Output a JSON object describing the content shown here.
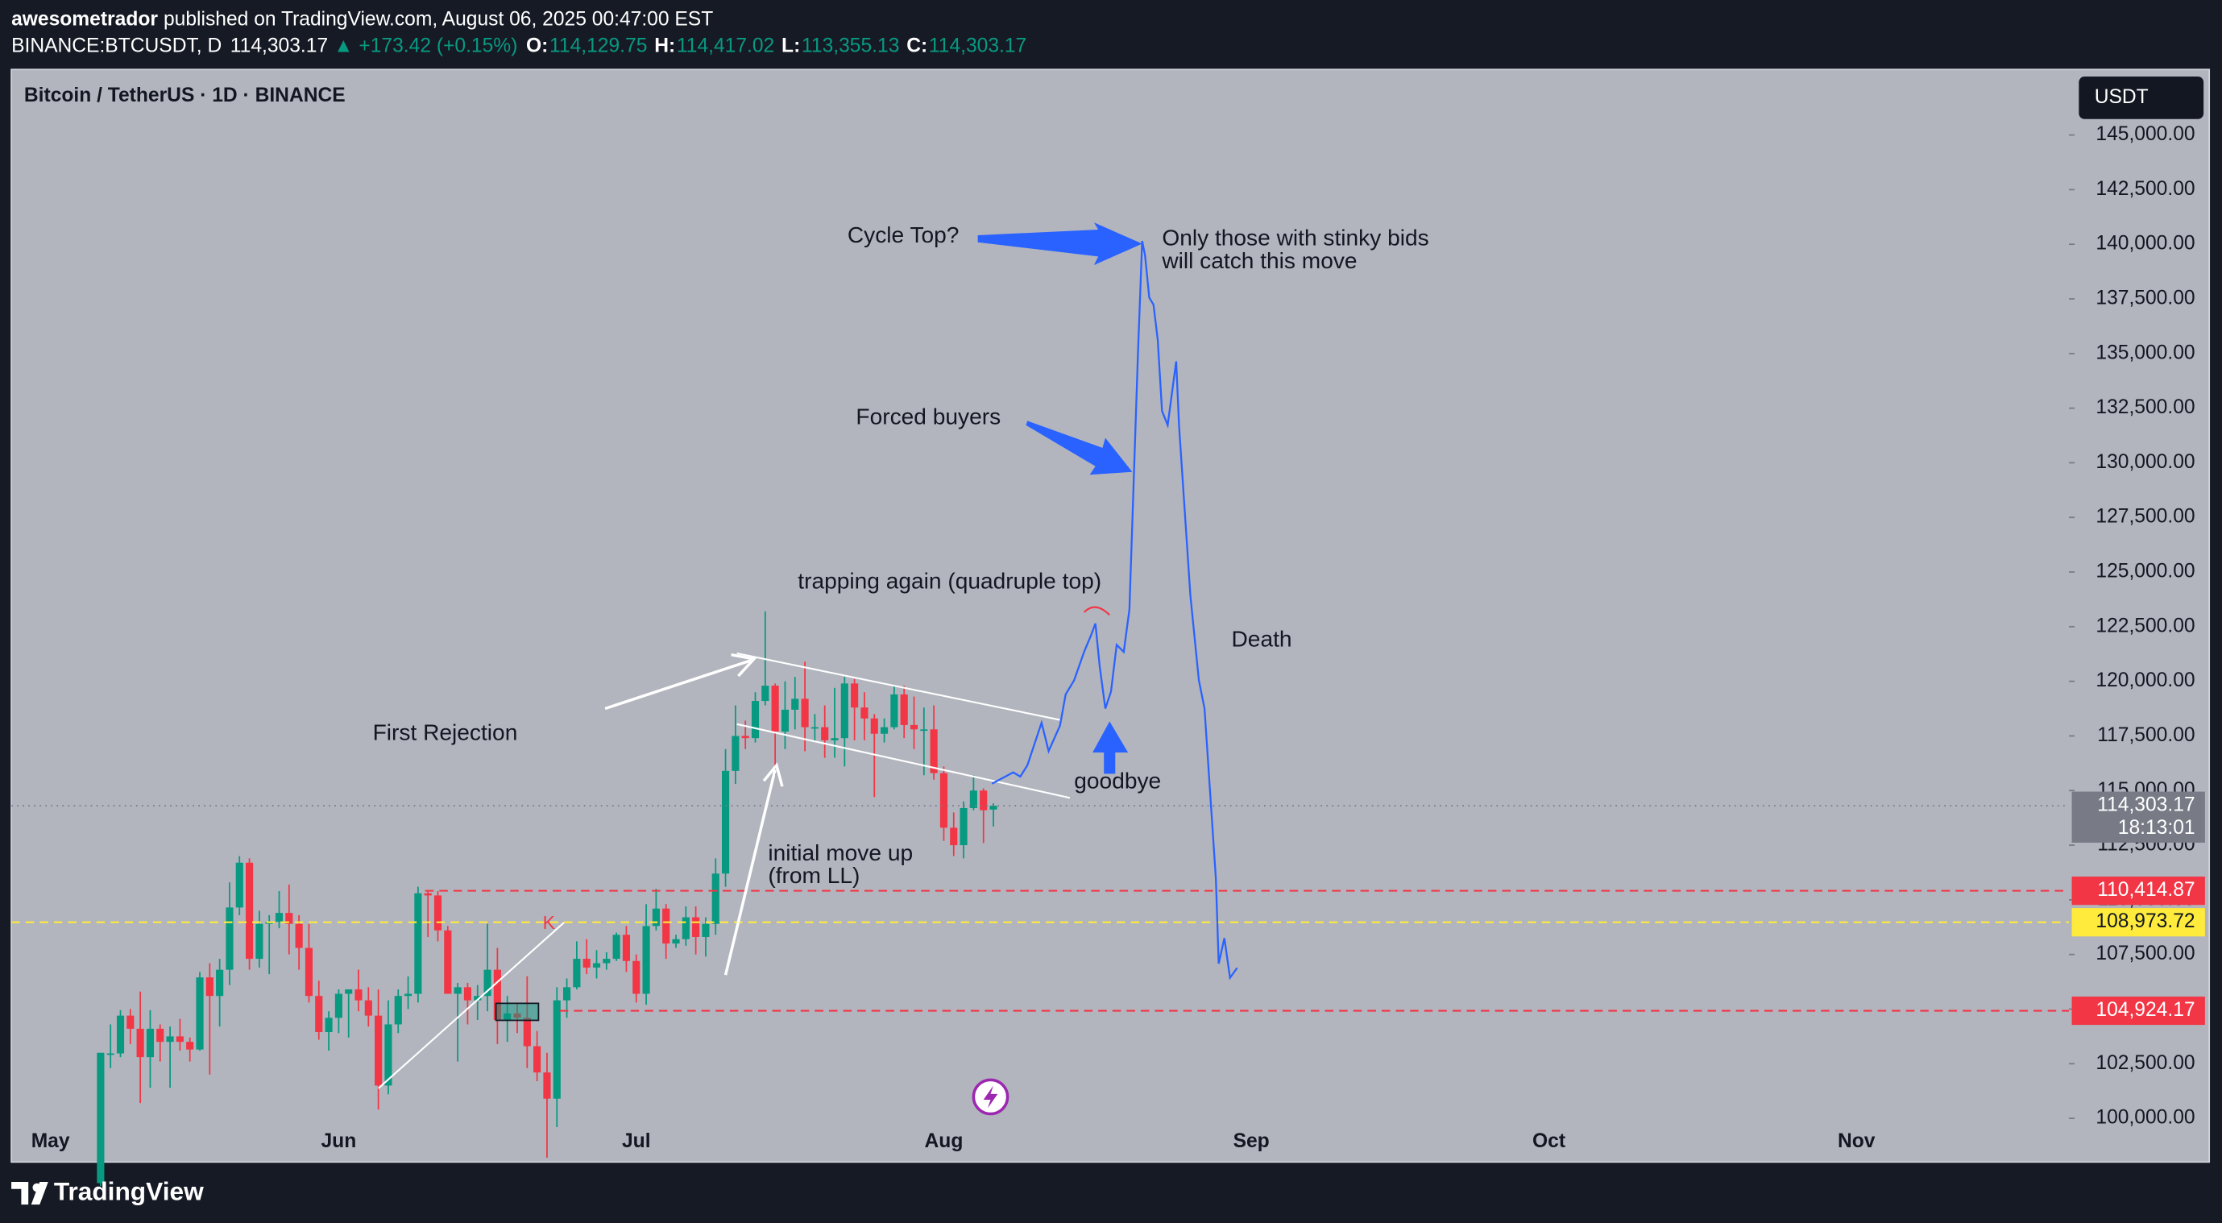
{
  "header": {
    "author": "awesometrador",
    "published": "published on TradingView.com, August 06, 2025 00:47:00 EST",
    "symbol": "BINANCE:BTCUSDT, D",
    "last": "114,303.17",
    "change": "▲ +173.42 (+0.15%)",
    "ohlc": [
      {
        "label": "O:",
        "value": "114,129.75"
      },
      {
        "label": "H:",
        "value": "114,417.02"
      },
      {
        "label": "L:",
        "value": "113,355.13"
      },
      {
        "label": "C:",
        "value": "114,303.17"
      }
    ]
  },
  "footer": {
    "brand": "TradingView"
  },
  "chart_data": {
    "type": "candlestick",
    "title": "Bitcoin / TetherUS · 1D · BINANCE",
    "currency": "USDT",
    "up_color": "#089981",
    "down_color": "#f23645",
    "x_labels": [
      "May",
      "Jun",
      "Jul",
      "Aug",
      "Sep",
      "Oct",
      "Nov"
    ],
    "open": [
      97034,
      102970,
      102970,
      104700,
      104100,
      102800,
      104100,
      103500,
      103750,
      103500,
      103150,
      106450,
      105600,
      106800,
      109650,
      111700,
      107300,
      108900,
      109000,
      109400,
      108900,
      107800,
      105600,
      103950,
      104600,
      105700,
      105900,
      105400,
      104700,
      101500,
      104300,
      105600,
      105700,
      110300,
      110200,
      108600,
      105700,
      106000,
      105400,
      105600,
      106800,
      104500,
      104800,
      104600,
      103300,
      102100,
      100900,
      105400,
      106000,
      107300,
      106900,
      107100,
      107300,
      108400,
      107200,
      105700,
      108800,
      109600,
      108000,
      108200,
      109200,
      108300,
      108900,
      111200,
      115900,
      117500,
      117400,
      119100,
      119800,
      117700,
      118700,
      119200,
      117900,
      117900,
      117300,
      117400,
      119900,
      118800,
      118300,
      117600,
      117900,
      119400,
      118000,
      117800,
      117800,
      115800,
      113300,
      112500,
      114200,
      115000,
      114129.75
    ],
    "high": [
      103000,
      104300,
      104950,
      105000,
      105800,
      104950,
      104300,
      104200,
      104550,
      103700,
      106700,
      107100,
      107300,
      110800,
      112000,
      111900,
      109500,
      109300,
      110400,
      110700,
      109300,
      108900,
      106300,
      104900,
      105900,
      105900,
      106800,
      106000,
      105900,
      105400,
      105900,
      106500,
      110600,
      110400,
      110400,
      108800,
      106200,
      106200,
      106100,
      108900,
      107800,
      105600,
      105300,
      106500,
      104000,
      103000,
      106000,
      106400,
      108100,
      108200,
      107700,
      107600,
      108500,
      108800,
      107500,
      109800,
      110500,
      109800,
      108400,
      109700,
      109700,
      109200,
      111900,
      116900,
      118900,
      118200,
      119500,
      123200,
      119900,
      120000,
      120200,
      120900,
      118500,
      118900,
      119700,
      120200,
      120100,
      119500,
      118500,
      118300,
      119800,
      119800,
      119300,
      118800,
      118900,
      116100,
      114000,
      114500,
      115700,
      115100,
      114417.02
    ],
    "low": [
      96900,
      102300,
      102800,
      103400,
      100700,
      101400,
      102600,
      101400,
      103100,
      102600,
      103100,
      102000,
      104200,
      106100,
      109300,
      106800,
      106900,
      106600,
      108700,
      107500,
      106800,
      105300,
      103600,
      103100,
      103900,
      103700,
      104900,
      104200,
      100400,
      101100,
      103900,
      105000,
      105300,
      108300,
      108100,
      105700,
      102600,
      104300,
      104500,
      104900,
      103400,
      103500,
      103900,
      102300,
      101700,
      98200,
      99600,
      104600,
      105900,
      106600,
      106400,
      106800,
      107200,
      106700,
      105300,
      105200,
      108600,
      107300,
      107800,
      107900,
      107500,
      107400,
      108400,
      110600,
      115300,
      116900,
      117200,
      118900,
      115700,
      116900,
      117800,
      116800,
      117300,
      116500,
      116500,
      116100,
      117300,
      117300,
      114700,
      117200,
      117800,
      117400,
      116900,
      115700,
      115500,
      112700,
      112000,
      111900,
      114100,
      112600,
      113355.13
    ],
    "close": [
      103000,
      102970,
      104700,
      104100,
      102800,
      104100,
      103500,
      103750,
      103500,
      103150,
      106450,
      105600,
      106800,
      109650,
      111700,
      107300,
      108900,
      109000,
      109400,
      108900,
      107800,
      105600,
      103950,
      104600,
      105700,
      105900,
      105400,
      104700,
      101500,
      104300,
      105600,
      105700,
      110300,
      110200,
      108600,
      105700,
      106000,
      105400,
      105600,
      106800,
      104500,
      104800,
      104600,
      103300,
      102100,
      100900,
      105400,
      106000,
      107300,
      106900,
      107100,
      107300,
      108400,
      107200,
      105700,
      108800,
      109600,
      108000,
      108200,
      109200,
      108300,
      108900,
      111200,
      115900,
      117500,
      117400,
      119100,
      119800,
      117700,
      118700,
      119200,
      117900,
      117900,
      117300,
      117400,
      119900,
      118800,
      118300,
      117600,
      117900,
      119400,
      118000,
      117800,
      117800,
      115800,
      113300,
      112500,
      114200,
      115000,
      114100,
      114303.17
    ],
    "ylim": [
      98000,
      148000
    ],
    "yticks": [
      {
        "value": 100000,
        "label": "100,000.00"
      },
      {
        "value": 102500,
        "label": "102,500.00"
      },
      {
        "value": 105000,
        "label": "105,000.00"
      },
      {
        "value": 107500,
        "label": "107,500.00"
      },
      {
        "value": 110000,
        "label": "110,000.00"
      },
      {
        "value": 112500,
        "label": "112,500.00"
      },
      {
        "value": 115000,
        "label": "115,000.00"
      },
      {
        "value": 117500,
        "label": "117,500.00"
      },
      {
        "value": 120000,
        "label": "120,000.00"
      },
      {
        "value": 122500,
        "label": "122,500.00"
      },
      {
        "value": 125000,
        "label": "125,000.00"
      },
      {
        "value": 127500,
        "label": "127,500.00"
      },
      {
        "value": 130000,
        "label": "130,000.00"
      },
      {
        "value": 132500,
        "label": "132,500.00"
      },
      {
        "value": 135000,
        "label": "135,000.00"
      },
      {
        "value": 137500,
        "label": "137,500.00"
      },
      {
        "value": 140000,
        "label": "140,000.00"
      },
      {
        "value": 142500,
        "label": "142,500.00"
      },
      {
        "value": 145000,
        "label": "145,000.00"
      }
    ],
    "levels": [
      {
        "value": 110414.87,
        "label": "110,414.87",
        "color": "#f23645",
        "text_color": "#ffffff"
      },
      {
        "value": 108973.72,
        "label": "108,973.72",
        "color": "#ffeb3b",
        "text_color": "#131722"
      },
      {
        "value": 104924.17,
        "label": "104,924.17",
        "color": "#f23645",
        "text_color": "#ffffff"
      }
    ],
    "current_price": {
      "value": 114303.17,
      "label": "114,303.17",
      "countdown": "18:13:01"
    },
    "marker": "K",
    "annotations": [
      {
        "lines": [
          "Cycle Top?"
        ]
      },
      {
        "lines": [
          "Only those with stinky bids",
          "will catch this move"
        ]
      },
      {
        "lines": [
          "Forced buyers"
        ]
      },
      {
        "lines": [
          "trapping again (quadruple top)"
        ]
      },
      {
        "lines": [
          "Death"
        ]
      },
      {
        "lines": [
          "First Rejection"
        ]
      },
      {
        "lines": [
          "goodbye"
        ]
      },
      {
        "lines": [
          "initial move up",
          "(from LL)"
        ]
      }
    ]
  }
}
